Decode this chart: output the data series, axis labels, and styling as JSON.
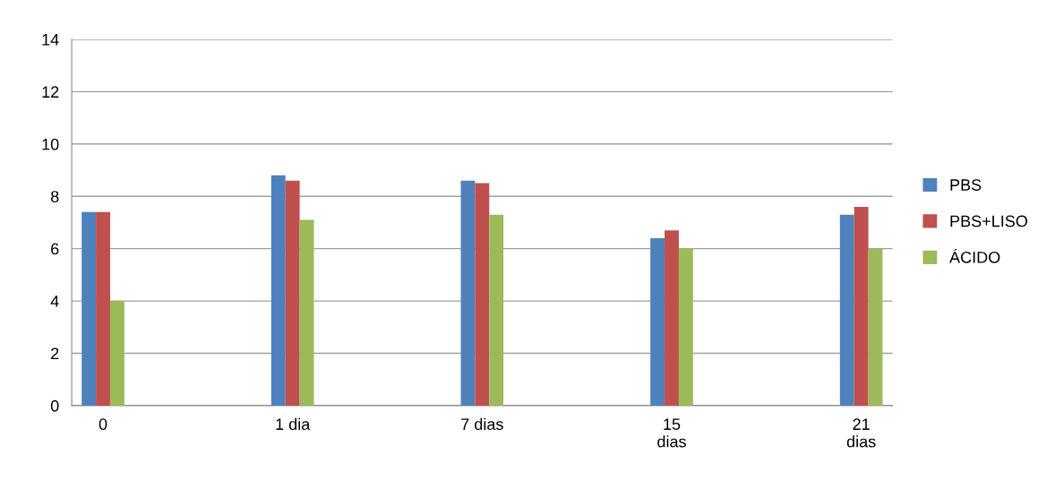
{
  "chart_data": {
    "type": "bar",
    "categories": [
      "0",
      "1 dia",
      "7 dias",
      "15\ndias",
      "21\ndias"
    ],
    "series": [
      {
        "name": "PBS",
        "color": "#4f81bd",
        "values": [
          7.4,
          8.8,
          8.6,
          6.4,
          7.3
        ]
      },
      {
        "name": "PBS+LISO",
        "color": "#c0504d",
        "values": [
          7.4,
          8.6,
          8.5,
          6.7,
          7.6
        ]
      },
      {
        "name": "ÁCIDO",
        "color": "#9bbb59",
        "values": [
          4.0,
          7.1,
          7.3,
          6.0,
          6.0
        ]
      }
    ],
    "ylim": [
      0,
      14
    ],
    "yticks": [
      0,
      2,
      4,
      6,
      8,
      10,
      12,
      14
    ],
    "grid": "y",
    "legend": "right"
  }
}
